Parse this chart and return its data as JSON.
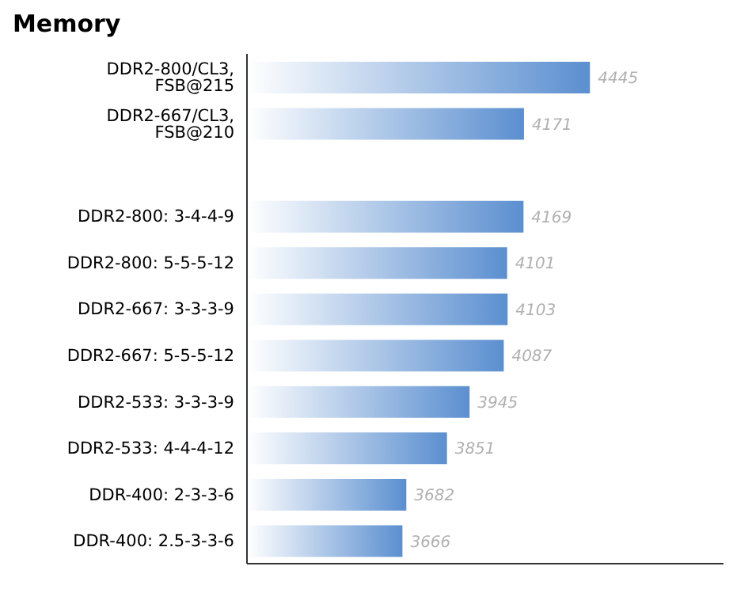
{
  "chart_data": {
    "type": "bar",
    "orientation": "horizontal",
    "title": "Memory",
    "categories": [
      "DDR2-800/CL3, FSB@215",
      "DDR2-667/CL3, FSB@210",
      null,
      "DDR2-800: 3-4-4-9",
      "DDR2-800: 5-5-5-12",
      "DDR2-667: 3-3-3-9",
      "DDR2-667: 5-5-5-12",
      "DDR2-533: 3-3-3-9",
      "DDR2-533: 4-4-4-12",
      "DDR-400: 2-3-3-6",
      "DDR-400: 2.5-3-3-6"
    ],
    "values": [
      4445,
      4171,
      null,
      4169,
      4101,
      4103,
      4087,
      3945,
      3851,
      3682,
      3666
    ],
    "color": "#5b8fd0",
    "xlim": [
      3020,
      5000
    ],
    "tick_labels": "y",
    "data_labels": true,
    "grid": false,
    "legend": false
  }
}
